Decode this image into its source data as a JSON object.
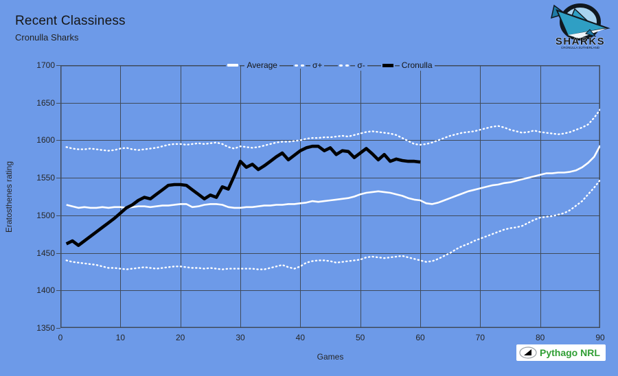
{
  "colors": {
    "background": "#6d9ae8",
    "grid": "#3f4a5a",
    "white_series": "#ffffff",
    "black_series": "#000000",
    "badge_green": "#2f9e33",
    "text": "#262626"
  },
  "header": {
    "title": "Recent Classiness",
    "subtitle": "Cronulla Sharks"
  },
  "sharks_logo": {
    "wordmark": "SHARKS",
    "subtext": "CRONULLA SUTHERLAND"
  },
  "badge": {
    "text": "Pythago NRL"
  },
  "chart_data": {
    "type": "line",
    "xlabel": "Games",
    "ylabel": "Eratosthenes rating",
    "xlim": [
      0,
      90
    ],
    "ylim": [
      1350,
      1700
    ],
    "xticks": [
      0,
      10,
      20,
      30,
      40,
      50,
      60,
      70,
      80,
      90
    ],
    "yticks": [
      1350,
      1400,
      1450,
      1500,
      1550,
      1600,
      1650,
      1700
    ],
    "grid": true,
    "legend_position": "top-center",
    "x_start": 1,
    "series": [
      {
        "name": "Average",
        "style": "solid",
        "color": "#ffffff",
        "width": 2.6,
        "values": [
          1514,
          1512,
          1510,
          1511,
          1510,
          1510,
          1511,
          1510,
          1511,
          1511,
          1510,
          1511,
          1512,
          1512,
          1511,
          1512,
          1513,
          1513,
          1514,
          1515,
          1515,
          1511,
          1512,
          1514,
          1515,
          1515,
          1514,
          1511,
          1510,
          1510,
          1511,
          1511,
          1512,
          1513,
          1513,
          1514,
          1514,
          1515,
          1515,
          1516,
          1517,
          1519,
          1518,
          1519,
          1520,
          1521,
          1522,
          1523,
          1525,
          1528,
          1530,
          1531,
          1532,
          1531,
          1530,
          1528,
          1526,
          1523,
          1521,
          1520,
          1516,
          1515,
          1517,
          1520,
          1523,
          1526,
          1529,
          1532,
          1534,
          1536,
          1538,
          1540,
          1541,
          1543,
          1544,
          1546,
          1548,
          1550,
          1552,
          1554,
          1556,
          1556,
          1557,
          1557,
          1558,
          1560,
          1564,
          1570,
          1578,
          1593
        ]
      },
      {
        "name": "σ+",
        "style": "dotted",
        "color": "#ffffff",
        "width": 2.4,
        "values": [
          1591,
          1589,
          1588,
          1588,
          1589,
          1588,
          1587,
          1586,
          1587,
          1589,
          1590,
          1588,
          1587,
          1588,
          1589,
          1590,
          1592,
          1594,
          1595,
          1595,
          1594,
          1595,
          1596,
          1595,
          1596,
          1597,
          1595,
          1591,
          1589,
          1592,
          1591,
          1590,
          1591,
          1593,
          1595,
          1597,
          1598,
          1598,
          1599,
          1600,
          1602,
          1603,
          1603,
          1604,
          1604,
          1605,
          1606,
          1605,
          1607,
          1609,
          1611,
          1612,
          1611,
          1610,
          1609,
          1607,
          1603,
          1599,
          1595,
          1594,
          1595,
          1597,
          1600,
          1603,
          1606,
          1608,
          1610,
          1611,
          1612,
          1614,
          1616,
          1618,
          1619,
          1617,
          1614,
          1612,
          1610,
          1611,
          1613,
          1611,
          1610,
          1609,
          1608,
          1609,
          1611,
          1614,
          1617,
          1621,
          1630,
          1641
        ]
      },
      {
        "name": "σ-",
        "style": "dotted",
        "color": "#ffffff",
        "width": 2.4,
        "values": [
          1440,
          1438,
          1437,
          1436,
          1435,
          1434,
          1432,
          1430,
          1430,
          1429,
          1428,
          1429,
          1430,
          1431,
          1430,
          1429,
          1430,
          1431,
          1432,
          1432,
          1431,
          1430,
          1430,
          1429,
          1430,
          1429,
          1428,
          1429,
          1429,
          1429,
          1429,
          1429,
          1428,
          1428,
          1430,
          1432,
          1434,
          1431,
          1429,
          1432,
          1437,
          1439,
          1440,
          1440,
          1439,
          1437,
          1438,
          1439,
          1440,
          1441,
          1444,
          1445,
          1444,
          1443,
          1444,
          1445,
          1446,
          1444,
          1442,
          1440,
          1438,
          1439,
          1442,
          1446,
          1450,
          1455,
          1459,
          1462,
          1466,
          1469,
          1472,
          1475,
          1478,
          1481,
          1483,
          1484,
          1486,
          1490,
          1494,
          1497,
          1498,
          1499,
          1501,
          1503,
          1507,
          1513,
          1519,
          1528,
          1537,
          1547
        ]
      },
      {
        "name": "Cronulla",
        "style": "solid",
        "color": "#000000",
        "width": 4.6,
        "values": [
          1462,
          1466,
          1460,
          1466,
          1472,
          1478,
          1484,
          1490,
          1496,
          1503,
          1510,
          1514,
          1520,
          1524,
          1522,
          1528,
          1534,
          1540,
          1541,
          1541,
          1540,
          1534,
          1528,
          1522,
          1527,
          1524,
          1538,
          1535,
          1553,
          1572,
          1564,
          1568,
          1561,
          1566,
          1572,
          1578,
          1583,
          1574,
          1580,
          1586,
          1590,
          1592,
          1592,
          1586,
          1590,
          1581,
          1586,
          1585,
          1577,
          1583,
          1589,
          1582,
          1574,
          1581,
          1572,
          1575,
          1573,
          1572,
          1572,
          1571
        ]
      }
    ]
  }
}
